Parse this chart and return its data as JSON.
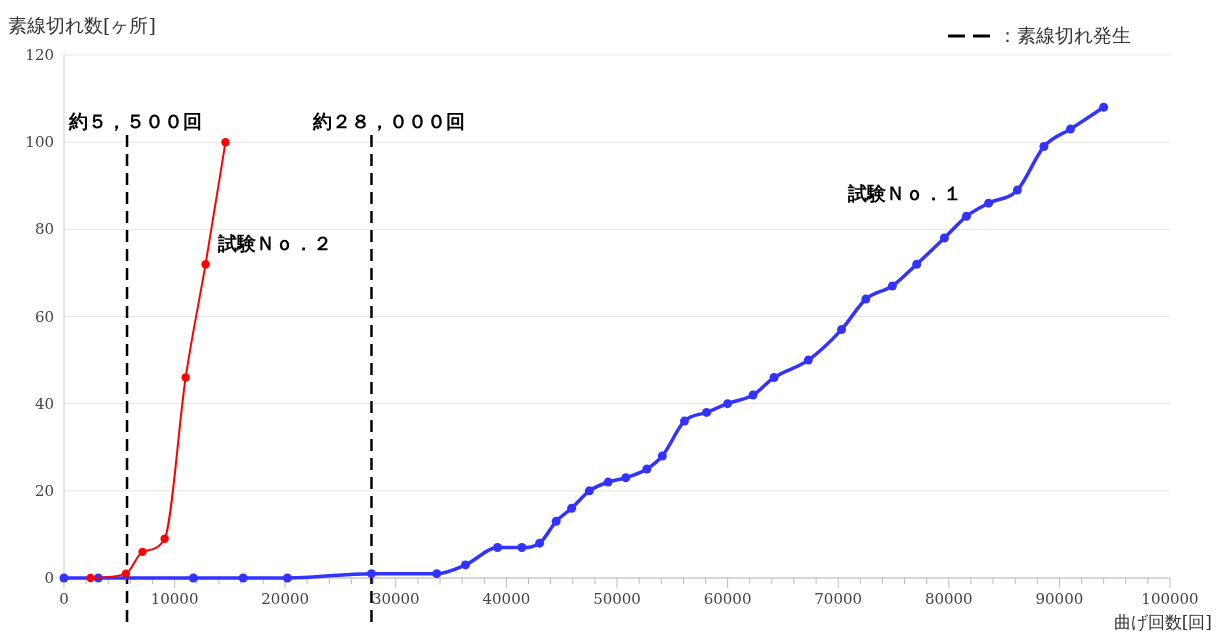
{
  "chart_data": {
    "type": "line",
    "ylabel": "素線切れ数[ヶ所]",
    "xlabel": "曲げ回数[回]",
    "xlim": [
      0,
      100000
    ],
    "ylim": [
      0,
      120
    ],
    "xticks": [
      0,
      {
        "value": 2000,
        "label": null
      },
      {
        "value": 4000,
        "label": null
      },
      {
        "value": 6000,
        "label": null
      },
      {
        "value": 8000,
        "label": null
      },
      10000,
      {
        "value": 12000,
        "label": null
      },
      {
        "value": 14000,
        "label": null
      },
      {
        "value": 16000,
        "label": null
      },
      {
        "value": 18000,
        "label": null
      },
      20000,
      {
        "value": 22000,
        "label": null
      },
      {
        "value": 24000,
        "label": null
      },
      {
        "value": 26000,
        "label": null
      },
      {
        "value": 28000,
        "label": null
      },
      30000,
      {
        "value": 32000,
        "label": null
      },
      {
        "value": 34000,
        "label": null
      },
      {
        "value": 36000,
        "label": null
      },
      {
        "value": 38000,
        "label": null
      },
      40000,
      {
        "value": 42000,
        "label": null
      },
      {
        "value": 44000,
        "label": null
      },
      {
        "value": 46000,
        "label": null
      },
      {
        "value": 48000,
        "label": null
      },
      50000,
      {
        "value": 52000,
        "label": null
      },
      {
        "value": 54000,
        "label": null
      },
      {
        "value": 56000,
        "label": null
      },
      {
        "value": 58000,
        "label": null
      },
      60000,
      {
        "value": 62000,
        "label": null
      },
      {
        "value": 64000,
        "label": null
      },
      {
        "value": 66000,
        "label": null
      },
      {
        "value": 68000,
        "label": null
      },
      70000,
      {
        "value": 72000,
        "label": null
      },
      {
        "value": 74000,
        "label": null
      },
      {
        "value": 76000,
        "label": null
      },
      {
        "value": 78000,
        "label": null
      },
      80000,
      {
        "value": 82000,
        "label": null
      },
      {
        "value": 84000,
        "label": null
      },
      {
        "value": 86000,
        "label": null
      },
      {
        "value": 88000,
        "label": null
      },
      90000,
      {
        "value": 92000,
        "label": null
      },
      {
        "value": 94000,
        "label": null
      },
      {
        "value": 96000,
        "label": null
      },
      {
        "value": 98000,
        "label": null
      },
      100000
    ],
    "yticks": [
      0,
      20,
      40,
      60,
      80,
      100,
      120
    ],
    "grid": "y",
    "marker": "circle",
    "line_style": "solid",
    "series": [
      {
        "name": "試験Ｎｏ．１",
        "color": "#3333ff",
        "x": [
          0,
          3100,
          11700,
          16200,
          20200,
          27800,
          33700,
          36300,
          39200,
          41400,
          43000,
          44500,
          45900,
          47500,
          49200,
          50800,
          52700,
          54100,
          56100,
          58100,
          60000,
          62300,
          64200,
          67300,
          70300,
          72500,
          74900,
          77100,
          79600,
          81600,
          83600,
          86200,
          88600,
          91000,
          94000
        ],
        "values": [
          0,
          0,
          0,
          0,
          0,
          1,
          1,
          3,
          7,
          7,
          8,
          13,
          16,
          20,
          22,
          23,
          25,
          28,
          36,
          38,
          40,
          42,
          46,
          50,
          57,
          64,
          67,
          72,
          78,
          83,
          86,
          89,
          99,
          103,
          108
        ]
      },
      {
        "name": "試験Ｎｏ．２",
        "color": "#ff0000",
        "x": [
          2400,
          5600,
          7100,
          9100,
          11000,
          12800,
          14600
        ],
        "values": [
          0,
          1,
          6,
          9,
          46,
          72,
          100
        ]
      }
    ],
    "ref_lines": [
      {
        "axis": "x",
        "value": 5700,
        "label": "約５，５００回",
        "color": "#000000",
        "line_style": "dashed"
      },
      {
        "axis": "x",
        "value": 27800,
        "label": "約２８，０００回",
        "color": "#000000",
        "line_style": "dashed"
      }
    ],
    "annotations": [
      "：素線切れ発生"
    ]
  }
}
